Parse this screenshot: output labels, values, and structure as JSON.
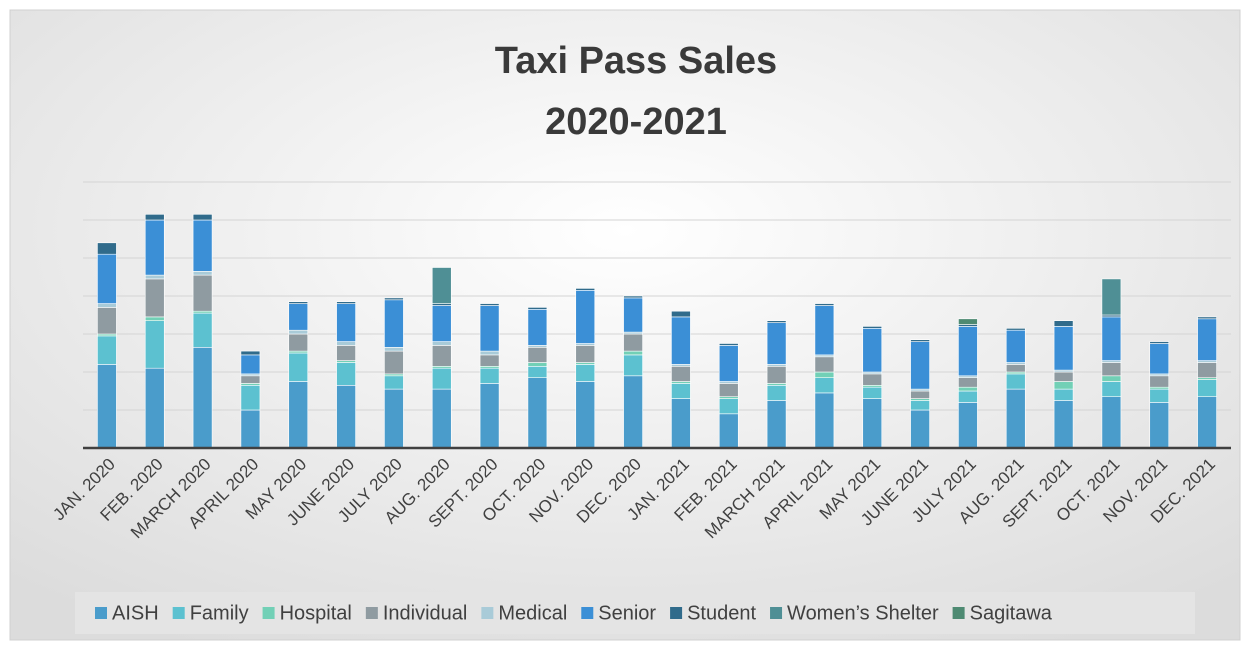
{
  "chart_data": {
    "type": "bar",
    "stacked": true,
    "title": [
      "Taxi Pass Sales",
      "2020-2021"
    ],
    "categories": [
      "JAN. 2020",
      "FEB. 2020",
      "MARCH 2020",
      "APRIL 2020",
      "MAY 2020",
      "JUNE 2020",
      "JULY 2020",
      "AUG. 2020",
      "SEPT. 2020",
      "OCT. 2020",
      "NOV. 2020",
      "DEC. 2020",
      "JAN. 2021",
      "FEB. 2021",
      "MARCH 2021",
      "APRIL 2021",
      "MAY 2021",
      "JUNE 2021",
      "JULY 2021",
      "AUG. 2021",
      "SEPT. 2021",
      "OCT. 2021",
      "NOV. 2021",
      "DEC. 2021"
    ],
    "series": [
      {
        "name": "AISH",
        "color": "#4a9ccb",
        "values": [
          44,
          42,
          53,
          20,
          35,
          33,
          31,
          31,
          34,
          37,
          35,
          38,
          26,
          18,
          25,
          29,
          26,
          20,
          24,
          31,
          25,
          27,
          24,
          27
        ]
      },
      {
        "name": "Family",
        "color": "#5cc1d0",
        "values": [
          15,
          25,
          18,
          13,
          15,
          12,
          7,
          11,
          8,
          6,
          9,
          11,
          8,
          8,
          8,
          8,
          6,
          5,
          6,
          8,
          6,
          8,
          7,
          9
        ]
      },
      {
        "name": "Hospital",
        "color": "#72d0b6",
        "values": [
          1,
          2,
          1,
          1,
          1,
          1,
          1,
          1,
          1,
          2,
          1,
          2,
          1,
          1,
          1,
          3,
          1,
          1,
          2,
          1,
          4,
          3,
          1,
          1
        ]
      },
      {
        "name": "Individual",
        "color": "#8f9ba1",
        "values": [
          14,
          20,
          19,
          4,
          9,
          8,
          12,
          11,
          6,
          8,
          9,
          9,
          8,
          7,
          9,
          8,
          6,
          4,
          5,
          4,
          5,
          7,
          6,
          8
        ]
      },
      {
        "name": "Medical",
        "color": "#a9cbd8",
        "values": [
          2,
          2,
          2,
          1,
          2,
          2,
          2,
          2,
          2,
          1,
          1,
          1,
          1,
          1,
          1,
          1,
          1,
          1,
          1,
          1,
          1,
          1,
          1,
          1
        ]
      },
      {
        "name": "Senior",
        "color": "#3b8fd6",
        "values": [
          26,
          29,
          27,
          10,
          14,
          20,
          25,
          19,
          24,
          19,
          28,
          18,
          25,
          19,
          22,
          26,
          23,
          25,
          26,
          17,
          23,
          23,
          16,
          22
        ]
      },
      {
        "name": "Student",
        "color": "#306b8b",
        "values": [
          6,
          3,
          3,
          2,
          1,
          1,
          1,
          1,
          1,
          1,
          1,
          1,
          3,
          1,
          1,
          1,
          1,
          1,
          1,
          1,
          3,
          1,
          1,
          1
        ]
      },
      {
        "name": "Women’s Shelter",
        "color": "#4f8f95",
        "values": [
          0,
          0,
          0,
          0,
          0,
          0,
          0,
          19,
          0,
          0,
          0,
          0,
          0,
          0,
          0,
          0,
          0,
          0,
          0,
          0,
          0,
          19,
          0,
          0
        ]
      },
      {
        "name": "Sagitawa",
        "color": "#4e8a72",
        "values": [
          0,
          0,
          0,
          0,
          0,
          0,
          0,
          0,
          0,
          0,
          0,
          0,
          0,
          0,
          0,
          0,
          0,
          0,
          3,
          0,
          0,
          0,
          0,
          0
        ]
      }
    ],
    "ylim": [
      0,
      140
    ],
    "yticks": [
      0,
      20,
      40,
      60,
      80,
      100,
      120,
      140
    ],
    "grid": true,
    "legend": "bottom"
  }
}
